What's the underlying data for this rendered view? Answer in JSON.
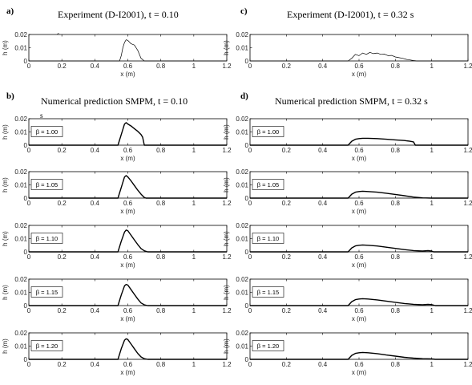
{
  "figure": {
    "panels": [
      {
        "letter": "a)",
        "title": "Experiment  (D-I2001), t = 0.10",
        "title_tail": "s"
      },
      {
        "letter": "c)",
        "title": "Experiment  (D-I2001), t = 0.32 s",
        "title_tail": ""
      },
      {
        "letter": "b)",
        "title": "Numerical prediction SMPM,  t  =  0.10",
        "title_tail": "s"
      },
      {
        "letter": "d)",
        "title": "Numerical prediction SMPM,  t  =  0.32 s",
        "title_tail": ""
      }
    ]
  },
  "chart_data": [
    {
      "id": "a",
      "type": "line",
      "xlabel": "x (m)",
      "ylabel": "h (m)",
      "xlim": [
        0,
        1.2
      ],
      "ylim": [
        0,
        0.02
      ],
      "xticks": [
        0,
        0.2,
        0.4,
        0.6,
        0.8,
        1,
        1.2
      ],
      "xtick_labels": [
        "0",
        "0.2",
        "0.4",
        "0.6",
        "0.8",
        "1",
        "1.2"
      ],
      "yticks": [
        0,
        0.01,
        0.02
      ],
      "ytick_labels": [
        "0",
        "0.01",
        "0.02"
      ],
      "line_width": "thin",
      "x": [
        0,
        0.55,
        0.56,
        0.57,
        0.58,
        0.59,
        0.6,
        0.62,
        0.64,
        0.66,
        0.68,
        0.7,
        1.2
      ],
      "y": [
        0,
        0,
        0.004,
        0.01,
        0.014,
        0.016,
        0.0155,
        0.013,
        0.012,
        0.008,
        0.002,
        0,
        0
      ]
    },
    {
      "id": "c",
      "type": "line",
      "xlabel": "x (m)",
      "ylabel": "h (m)",
      "xlim": [
        0,
        1.2
      ],
      "ylim": [
        0,
        0.02
      ],
      "xticks": [
        0,
        0.2,
        0.4,
        0.6,
        0.8,
        1,
        1.2
      ],
      "xtick_labels": [
        "0",
        "0.2",
        "0.4",
        "0.6",
        "0.8",
        "1",
        "1.2"
      ],
      "yticks": [
        0,
        0.01,
        0.02
      ],
      "ytick_labels": [
        "0",
        "0.01",
        "0.02"
      ],
      "line_width": "thin",
      "x": [
        0,
        0.54,
        0.56,
        0.58,
        0.6,
        0.62,
        0.64,
        0.66,
        0.68,
        0.7,
        0.72,
        0.74,
        0.76,
        0.78,
        0.8,
        0.82,
        0.84,
        0.86,
        0.88,
        0.9,
        0.92,
        1.2
      ],
      "y": [
        0,
        0,
        0.002,
        0.005,
        0.004,
        0.006,
        0.005,
        0.0065,
        0.0055,
        0.006,
        0.005,
        0.0052,
        0.004,
        0.0042,
        0.003,
        0.0025,
        0.002,
        0.0012,
        0.0008,
        0.0003,
        0,
        0
      ]
    },
    {
      "id": "b1",
      "type": "line",
      "annotation": "β = 1.00",
      "xlabel": "x (m)",
      "ylabel": "h (m)",
      "xlim": [
        0,
        1.2
      ],
      "ylim": [
        0,
        0.02
      ],
      "xticks": [
        0,
        0.2,
        0.4,
        0.6,
        0.8,
        1,
        1.2
      ],
      "xtick_labels": [
        "0",
        "0.2",
        "0.4",
        "0.6",
        "0.8",
        "1",
        "1.2"
      ],
      "yticks": [
        0,
        0.01,
        0.02
      ],
      "ytick_labels": [
        "0",
        "0.01",
        "0.02"
      ],
      "line_width": "thick",
      "x": [
        0,
        0.54,
        0.56,
        0.58,
        0.59,
        0.6,
        0.62,
        0.64,
        0.66,
        0.68,
        0.69,
        0.7,
        1.2
      ],
      "y": [
        0,
        0,
        0.008,
        0.016,
        0.017,
        0.016,
        0.0145,
        0.0125,
        0.0105,
        0.008,
        0.006,
        0,
        0
      ]
    },
    {
      "id": "b2",
      "type": "line",
      "annotation": "β = 1.05",
      "xlabel": "x (m)",
      "ylabel": "h (m)",
      "xlim": [
        0,
        1.2
      ],
      "ylim": [
        0,
        0.02
      ],
      "xticks": [
        0,
        0.2,
        0.4,
        0.6,
        0.8,
        1,
        1.2
      ],
      "xtick_labels": [
        "0",
        "0.2",
        "0.4",
        "0.6",
        "0.8",
        "1",
        "1.2"
      ],
      "yticks": [
        0,
        0.01,
        0.02
      ],
      "ytick_labels": [
        "0",
        "0.01",
        "0.02"
      ],
      "line_width": "thick",
      "x": [
        0,
        0.54,
        0.56,
        0.58,
        0.59,
        0.6,
        0.62,
        0.64,
        0.66,
        0.68,
        0.7,
        0.71,
        1.2
      ],
      "y": [
        0,
        0,
        0.008,
        0.016,
        0.017,
        0.016,
        0.013,
        0.0095,
        0.006,
        0.003,
        0.0005,
        0,
        0
      ]
    },
    {
      "id": "b3",
      "type": "line",
      "annotation": "β = 1.10",
      "xlabel": "x (m)",
      "ylabel": "h (m)",
      "xlim": [
        0,
        1.2
      ],
      "ylim": [
        0,
        0.02
      ],
      "xticks": [
        0,
        0.2,
        0.4,
        0.6,
        0.8,
        1,
        1.2
      ],
      "xtick_labels": [
        "0",
        "0.2",
        "0.4",
        "0.6",
        "0.8",
        "1",
        "1.2"
      ],
      "yticks": [
        0,
        0.01,
        0.02
      ],
      "ytick_labels": [
        "0",
        "0.01",
        "0.02"
      ],
      "line_width": "thick",
      "x": [
        0,
        0.54,
        0.56,
        0.58,
        0.59,
        0.6,
        0.62,
        0.64,
        0.66,
        0.68,
        0.7,
        0.72,
        1.2
      ],
      "y": [
        0,
        0,
        0.008,
        0.015,
        0.0165,
        0.016,
        0.0125,
        0.009,
        0.0055,
        0.0025,
        0.0008,
        0,
        0
      ]
    },
    {
      "id": "b4",
      "type": "line",
      "annotation": "β = 1.15",
      "xlabel": "x (m)",
      "ylabel": "h (m)",
      "xlim": [
        0,
        1.2
      ],
      "ylim": [
        0,
        0.02
      ],
      "xticks": [
        0,
        0.2,
        0.4,
        0.6,
        0.8,
        1,
        1.2
      ],
      "xtick_labels": [
        "0",
        "0.2",
        "0.4",
        "0.6",
        "0.8",
        "1",
        "1.2"
      ],
      "yticks": [
        0,
        0.01,
        0.02
      ],
      "ytick_labels": [
        "0",
        "0.01",
        "0.02"
      ],
      "line_width": "thick",
      "x": [
        0,
        0.54,
        0.56,
        0.58,
        0.59,
        0.6,
        0.62,
        0.64,
        0.66,
        0.68,
        0.7,
        0.72,
        1.2
      ],
      "y": [
        0,
        0,
        0.008,
        0.015,
        0.016,
        0.0155,
        0.012,
        0.0085,
        0.005,
        0.002,
        0.0006,
        0,
        0
      ]
    },
    {
      "id": "b5",
      "type": "line",
      "annotation": "β = 1.20",
      "xlabel": "x (m)",
      "ylabel": "h (m)",
      "xlim": [
        0,
        1.2
      ],
      "ylim": [
        0,
        0.02
      ],
      "xticks": [
        0,
        0.2,
        0.4,
        0.6,
        0.8,
        1,
        1.2
      ],
      "xtick_labels": [
        "0",
        "0.2",
        "0.4",
        "0.6",
        "0.8",
        "1",
        "1.2"
      ],
      "yticks": [
        0,
        0.01,
        0.02
      ],
      "ytick_labels": [
        "0",
        "0.01",
        "0.02"
      ],
      "line_width": "thick",
      "x": [
        0,
        0.54,
        0.56,
        0.58,
        0.59,
        0.6,
        0.62,
        0.64,
        0.66,
        0.68,
        0.7,
        0.72,
        1.2
      ],
      "y": [
        0,
        0,
        0.008,
        0.0145,
        0.0155,
        0.015,
        0.0115,
        0.008,
        0.0045,
        0.0018,
        0.0005,
        0,
        0
      ]
    },
    {
      "id": "d1",
      "type": "line",
      "annotation": "β = 1.00",
      "xlabel": "x (m)",
      "ylabel": "h (m)",
      "xlim": [
        0,
        1.2
      ],
      "ylim": [
        0,
        0.02
      ],
      "xticks": [
        0,
        0.2,
        0.4,
        0.6,
        0.8,
        1,
        1.2
      ],
      "xtick_labels": [
        "0",
        "0.2",
        "0.4",
        "0.6",
        "0.8",
        "1",
        "1.2"
      ],
      "yticks": [
        0,
        0.01,
        0.02
      ],
      "ytick_labels": [
        "0",
        "0.01",
        "0.02"
      ],
      "line_width": "thick",
      "x": [
        0,
        0.54,
        0.56,
        0.58,
        0.6,
        0.62,
        0.65,
        0.7,
        0.75,
        0.8,
        0.85,
        0.88,
        0.9,
        0.91,
        1.2
      ],
      "y": [
        0,
        0,
        0.003,
        0.0045,
        0.005,
        0.0052,
        0.0052,
        0.005,
        0.0045,
        0.004,
        0.0035,
        0.003,
        0.0025,
        0,
        0
      ]
    },
    {
      "id": "d2",
      "type": "line",
      "annotation": "β = 1.05",
      "xlabel": "x (m)",
      "ylabel": "h (m)",
      "xlim": [
        0,
        1.2
      ],
      "ylim": [
        0,
        0.02
      ],
      "xticks": [
        0,
        0.2,
        0.4,
        0.6,
        0.8,
        1,
        1.2
      ],
      "xtick_labels": [
        "0",
        "0.2",
        "0.4",
        "0.6",
        "0.8",
        "1",
        "1.2"
      ],
      "yticks": [
        0,
        0.01,
        0.02
      ],
      "ytick_labels": [
        "0",
        "0.01",
        "0.02"
      ],
      "line_width": "thick",
      "x": [
        0,
        0.54,
        0.56,
        0.58,
        0.6,
        0.62,
        0.65,
        0.7,
        0.75,
        0.8,
        0.85,
        0.9,
        0.95,
        1.0,
        1.2
      ],
      "y": [
        0,
        0,
        0.003,
        0.0045,
        0.005,
        0.0052,
        0.005,
        0.0045,
        0.0037,
        0.0028,
        0.0018,
        0.0008,
        0.0002,
        0,
        0
      ]
    },
    {
      "id": "d3",
      "type": "line",
      "annotation": "β = 1.10",
      "xlabel": "x (m)",
      "ylabel": "h (m)",
      "xlim": [
        0,
        1.2
      ],
      "ylim": [
        0,
        0.02
      ],
      "xticks": [
        0,
        0.2,
        0.4,
        0.6,
        0.8,
        1,
        1.2
      ],
      "xtick_labels": [
        "0",
        "0.2",
        "0.4",
        "0.6",
        "0.8",
        "1",
        "1.2"
      ],
      "yticks": [
        0,
        0.01,
        0.02
      ],
      "ytick_labels": [
        "0",
        "0.01",
        "0.02"
      ],
      "line_width": "thick",
      "x": [
        0,
        0.54,
        0.56,
        0.58,
        0.6,
        0.62,
        0.65,
        0.7,
        0.75,
        0.8,
        0.85,
        0.9,
        0.95,
        0.98,
        1.0,
        1.01,
        1.2
      ],
      "y": [
        0,
        0,
        0.003,
        0.0045,
        0.005,
        0.0052,
        0.005,
        0.0044,
        0.0035,
        0.0026,
        0.0017,
        0.001,
        0.0006,
        0.0009,
        0.0006,
        0,
        0
      ]
    },
    {
      "id": "d4",
      "type": "line",
      "annotation": "β = 1.15",
      "xlabel": "x (m)",
      "ylabel": "h (m)",
      "xlim": [
        0,
        1.2
      ],
      "ylim": [
        0,
        0.02
      ],
      "xticks": [
        0,
        0.2,
        0.4,
        0.6,
        0.8,
        1,
        1.2
      ],
      "xtick_labels": [
        "0",
        "0.2",
        "0.4",
        "0.6",
        "0.8",
        "1",
        "1.2"
      ],
      "yticks": [
        0,
        0.01,
        0.02
      ],
      "ytick_labels": [
        "0",
        "0.01",
        "0.02"
      ],
      "line_width": "thick",
      "x": [
        0,
        0.54,
        0.56,
        0.58,
        0.6,
        0.62,
        0.65,
        0.7,
        0.75,
        0.8,
        0.85,
        0.9,
        0.95,
        0.98,
        1.0,
        1.02,
        1.2
      ],
      "y": [
        0,
        0,
        0.003,
        0.0045,
        0.005,
        0.0052,
        0.005,
        0.0043,
        0.0034,
        0.0025,
        0.0016,
        0.001,
        0.0006,
        0.0009,
        0.0007,
        0,
        0
      ]
    },
    {
      "id": "d5",
      "type": "line",
      "annotation": "β = 1.20",
      "xlabel": "x (m)",
      "ylabel": "h (m)",
      "xlim": [
        0,
        1.2
      ],
      "ylim": [
        0,
        0.02
      ],
      "xticks": [
        0,
        0.2,
        0.4,
        0.6,
        0.8,
        1,
        1.2
      ],
      "xtick_labels": [
        "0",
        "0.2",
        "0.4",
        "0.6",
        "0.8",
        "1",
        "1.2"
      ],
      "yticks": [
        0,
        0.01,
        0.02
      ],
      "ytick_labels": [
        "0",
        "0.01",
        "0.02"
      ],
      "line_width": "thick",
      "x": [
        0,
        0.54,
        0.56,
        0.58,
        0.6,
        0.62,
        0.65,
        0.7,
        0.75,
        0.8,
        0.85,
        0.9,
        0.95,
        1.0,
        1.02,
        1.2
      ],
      "y": [
        0,
        0,
        0.003,
        0.0045,
        0.005,
        0.0052,
        0.005,
        0.0043,
        0.0033,
        0.0024,
        0.0015,
        0.0009,
        0.0005,
        0.0003,
        0,
        0
      ]
    }
  ]
}
